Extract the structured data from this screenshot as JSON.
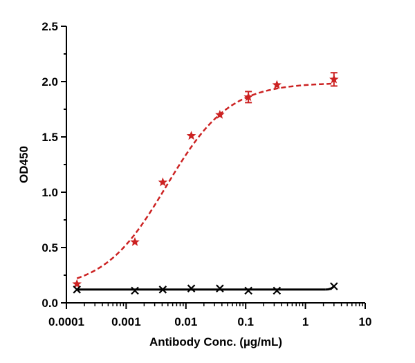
{
  "chart_data": {
    "type": "scatter",
    "title": "",
    "xlabel": "Antibody Conc. (µg/mL)",
    "ylabel": "OD450",
    "x_scale": "log",
    "xlim": [
      0.0001,
      10
    ],
    "ylim": [
      0,
      2.5
    ],
    "x_ticks": [
      "0.0001",
      "0.001",
      "0.01",
      "0.1",
      "1",
      "10"
    ],
    "y_ticks": [
      "0.0",
      "0.5",
      "1.0",
      "1.5",
      "2.0",
      "2.5"
    ],
    "grid": false,
    "legend": "none",
    "series": [
      {
        "marker": "star",
        "color": "#cc2222",
        "line": "dashed-fit",
        "x": [
          0.00015,
          0.0014,
          0.0041,
          0.0123,
          0.037,
          0.111,
          0.333,
          3.0
        ],
        "y": [
          0.17,
          0.55,
          1.09,
          1.51,
          1.7,
          1.86,
          1.97,
          2.02
        ],
        "error": [
          0,
          0,
          0,
          0,
          0,
          0.05,
          0,
          0.06
        ],
        "fit": {
          "bottom": 0.12,
          "top": 1.99,
          "ec50": 0.0047,
          "hill": 0.83
        }
      },
      {
        "marker": "x",
        "color": "#000000",
        "line": "solid-fit",
        "x": [
          0.00015,
          0.0014,
          0.0041,
          0.0123,
          0.037,
          0.111,
          0.333,
          3.0
        ],
        "y": [
          0.12,
          0.11,
          0.12,
          0.13,
          0.13,
          0.11,
          0.11,
          0.15
        ],
        "fit_level": 0.12
      }
    ]
  }
}
